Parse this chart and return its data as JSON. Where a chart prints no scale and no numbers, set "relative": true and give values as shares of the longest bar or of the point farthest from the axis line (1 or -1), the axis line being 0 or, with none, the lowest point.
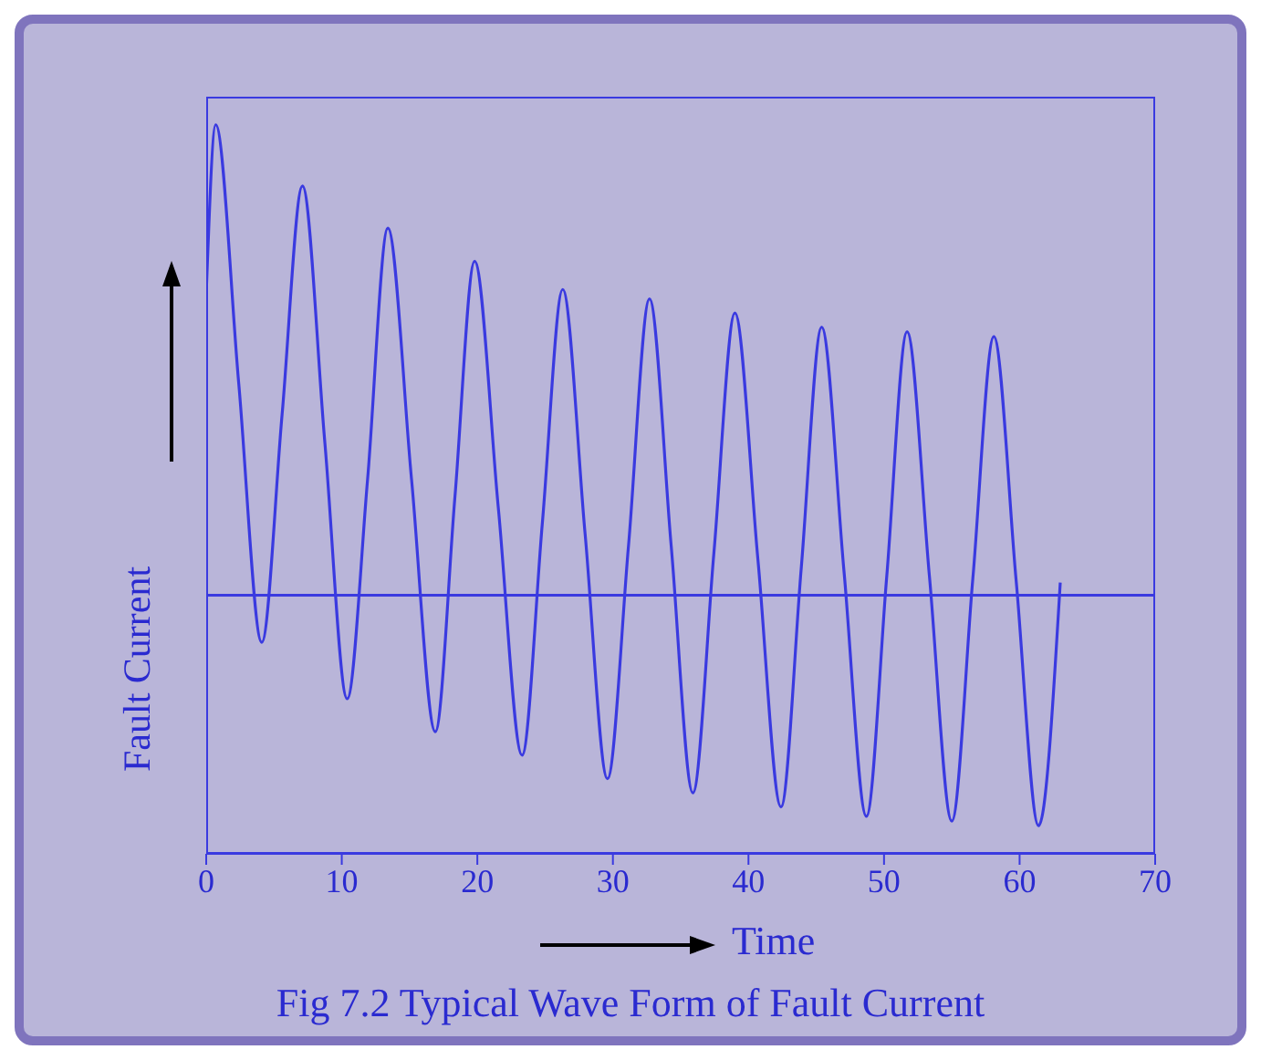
{
  "chart_data": {
    "type": "line",
    "title": "Fig 7.2 Typical Wave Form of Fault Current",
    "xlabel": "Time",
    "ylabel": "Fault Current",
    "relative": true,
    "xlim": [
      0,
      70
    ],
    "xticks": [
      0,
      10,
      20,
      30,
      40,
      50,
      60,
      70
    ],
    "marker": "none",
    "line_style": "solid",
    "color": "#3a3ae0",
    "x": [
      0,
      0.7,
      2.4,
      4.1,
      5.6,
      7.1,
      8.75,
      10.4,
      11.9,
      13.4,
      15.15,
      16.9,
      18.35,
      19.8,
      21.55,
      23.3,
      24.8,
      26.3,
      27.95,
      29.6,
      31.15,
      32.7,
      34.3,
      35.9,
      37.45,
      39.0,
      40.7,
      42.4,
      43.9,
      45.4,
      47.05,
      48.7,
      50.2,
      51.7,
      53.35,
      55.0,
      56.55,
      58.1,
      59.75,
      61.4,
      63.0
    ],
    "values": [
      0.64,
      1,
      0.45,
      -0.1,
      0.385,
      0.87,
      0.325,
      -0.22,
      0.245,
      0.78,
      0.245,
      -0.29,
      0.21,
      0.71,
      0.185,
      -0.34,
      0.155,
      0.65,
      0.13,
      -0.39,
      0.105,
      0.63,
      0.105,
      -0.42,
      0.09,
      0.6,
      0.075,
      -0.45,
      0.06,
      0.57,
      0.05,
      -0.47,
      0.04,
      0.56,
      0.04,
      -0.48,
      0.035,
      0.55,
      0.03,
      -0.49,
      0.027
    ],
    "ref_lines": [
      {
        "axis": "y",
        "value": 0,
        "color": "#3a3ae0"
      }
    ]
  }
}
